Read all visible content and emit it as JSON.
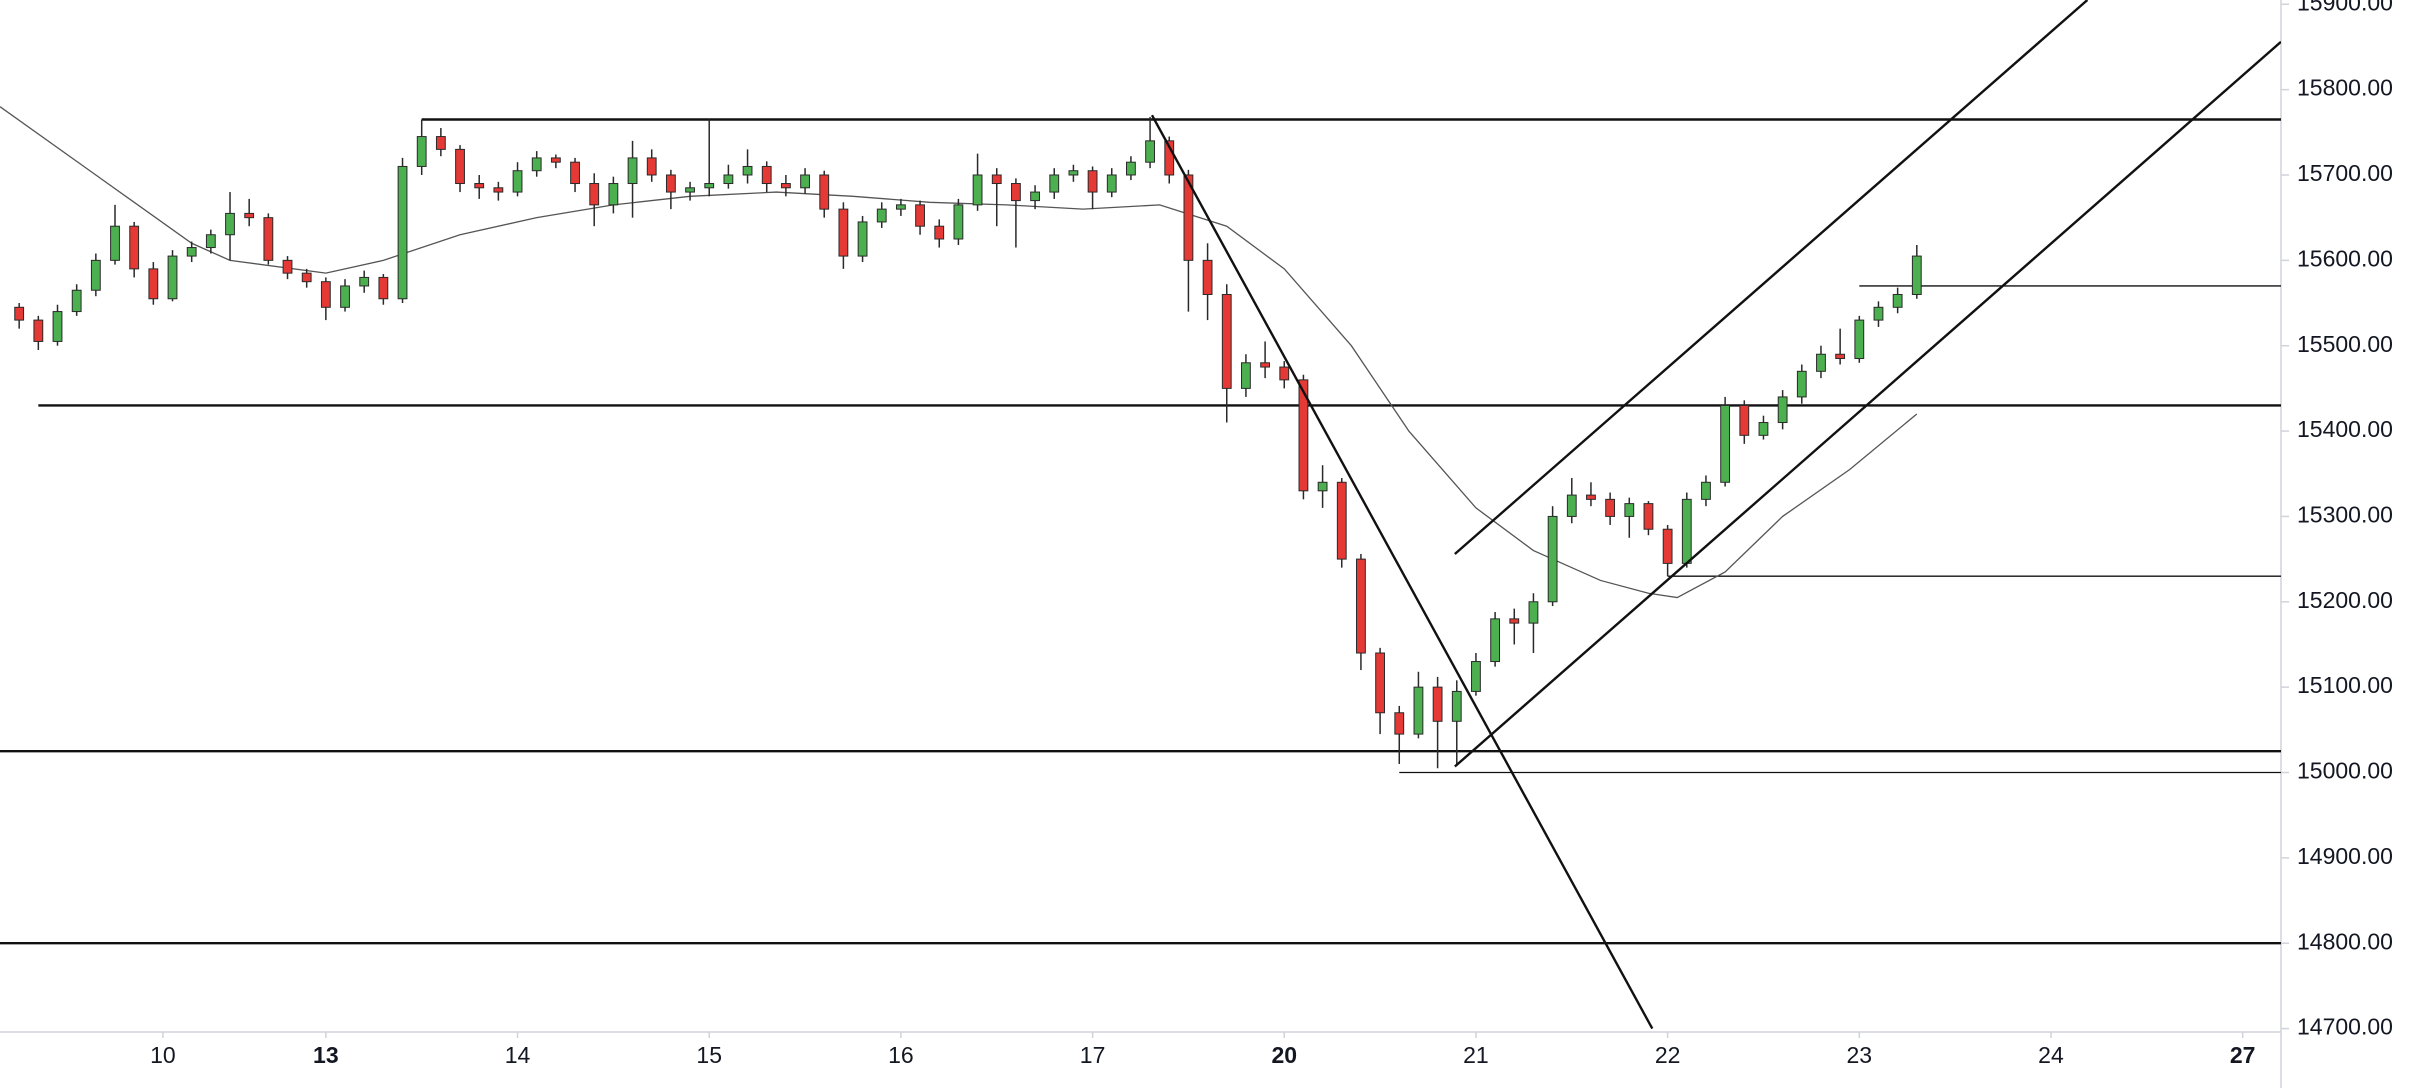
{
  "chart_data": {
    "type": "candlestick",
    "up_color": "#4caf50",
    "down_color": "#e53935",
    "outline_color": "#2a2a2a",
    "xlim": [
      -1,
      118
    ],
    "ylim": [
      14696,
      15905
    ],
    "xticks": [
      {
        "value": 7.5,
        "label": "10"
      },
      {
        "value": 16,
        "label": "13",
        "bold": true
      },
      {
        "value": 26,
        "label": "14"
      },
      {
        "value": 36,
        "label": "15"
      },
      {
        "value": 46,
        "label": "16"
      },
      {
        "value": 56,
        "label": "17"
      },
      {
        "value": 66,
        "label": "20",
        "bold": true
      },
      {
        "value": 76,
        "label": "21"
      },
      {
        "value": 86,
        "label": "22"
      },
      {
        "value": 96,
        "label": "23"
      },
      {
        "value": 106,
        "label": "24"
      },
      {
        "value": 116,
        "label": "27",
        "bold": true
      }
    ],
    "yticks": [
      {
        "value": 14700,
        "label": "14700.00"
      },
      {
        "value": 14800,
        "label": "14800.00"
      },
      {
        "value": 14900,
        "label": "14900.00"
      },
      {
        "value": 15000,
        "label": "15000.00"
      },
      {
        "value": 15100,
        "label": "15100.00"
      },
      {
        "value": 15200,
        "label": "15200.00"
      },
      {
        "value": 15300,
        "label": "15300.00"
      },
      {
        "value": 15400,
        "label": "15400.00"
      },
      {
        "value": 15500,
        "label": "15500.00"
      },
      {
        "value": 15600,
        "label": "15600.00"
      },
      {
        "value": 15700,
        "label": "15700.00"
      },
      {
        "value": 15800,
        "label": "15800.00"
      },
      {
        "value": 15900,
        "label": "15900.00"
      }
    ],
    "candles": [
      [
        15545,
        15550,
        15520,
        15530
      ],
      [
        15530,
        15535,
        15495,
        15505
      ],
      [
        15505,
        15548,
        15500,
        15540
      ],
      [
        15540,
        15572,
        15535,
        15565
      ],
      [
        15565,
        15608,
        15558,
        15600
      ],
      [
        15600,
        15665,
        15595,
        15640
      ],
      [
        15640,
        15645,
        15580,
        15590
      ],
      [
        15590,
        15598,
        15548,
        15555
      ],
      [
        15555,
        15612,
        15552,
        15605
      ],
      [
        15605,
        15622,
        15598,
        15615
      ],
      [
        15615,
        15636,
        15608,
        15630
      ],
      [
        15630,
        15680,
        15600,
        15655
      ],
      [
        15655,
        15672,
        15640,
        15650
      ],
      [
        15650,
        15655,
        15595,
        15600
      ],
      [
        15600,
        15605,
        15578,
        15585
      ],
      [
        15585,
        15590,
        15568,
        15575
      ],
      [
        15575,
        15580,
        15530,
        15545
      ],
      [
        15545,
        15578,
        15540,
        15570
      ],
      [
        15570,
        15588,
        15562,
        15580
      ],
      [
        15580,
        15584,
        15548,
        15555
      ],
      [
        15555,
        15720,
        15550,
        15710
      ],
      [
        15710,
        15765,
        15700,
        15745
      ],
      [
        15745,
        15755,
        15722,
        15730
      ],
      [
        15730,
        15735,
        15680,
        15690
      ],
      [
        15690,
        15700,
        15672,
        15685
      ],
      [
        15685,
        15692,
        15670,
        15680
      ],
      [
        15680,
        15715,
        15675,
        15705
      ],
      [
        15705,
        15728,
        15698,
        15720
      ],
      [
        15720,
        15724,
        15708,
        15715
      ],
      [
        15715,
        15720,
        15680,
        15690
      ],
      [
        15690,
        15702,
        15640,
        15665
      ],
      [
        15665,
        15698,
        15655,
        15690
      ],
      [
        15690,
        15740,
        15650,
        15720
      ],
      [
        15720,
        15730,
        15692,
        15700
      ],
      [
        15700,
        15706,
        15660,
        15680
      ],
      [
        15680,
        15692,
        15670,
        15685
      ],
      [
        15685,
        15765,
        15675,
        15690
      ],
      [
        15690,
        15712,
        15684,
        15700
      ],
      [
        15700,
        15730,
        15690,
        15710
      ],
      [
        15710,
        15716,
        15680,
        15690
      ],
      [
        15690,
        15700,
        15675,
        15685
      ],
      [
        15685,
        15708,
        15678,
        15700
      ],
      [
        15700,
        15705,
        15650,
        15660
      ],
      [
        15660,
        15668,
        15590,
        15605
      ],
      [
        15605,
        15652,
        15598,
        15645
      ],
      [
        15645,
        15668,
        15638,
        15660
      ],
      [
        15660,
        15672,
        15652,
        15665
      ],
      [
        15665,
        15670,
        15630,
        15640
      ],
      [
        15640,
        15648,
        15615,
        15625
      ],
      [
        15625,
        15672,
        15618,
        15665
      ],
      [
        15665,
        15725,
        15658,
        15700
      ],
      [
        15700,
        15708,
        15640,
        15690
      ],
      [
        15690,
        15696,
        15615,
        15670
      ],
      [
        15670,
        15688,
        15660,
        15680
      ],
      [
        15680,
        15708,
        15672,
        15700
      ],
      [
        15700,
        15712,
        15692,
        15705
      ],
      [
        15705,
        15710,
        15660,
        15680
      ],
      [
        15680,
        15708,
        15674,
        15700
      ],
      [
        15700,
        15722,
        15694,
        15715
      ],
      [
        15715,
        15768,
        15708,
        15740
      ],
      [
        15740,
        15745,
        15690,
        15700
      ],
      [
        15700,
        15706,
        15540,
        15600
      ],
      [
        15600,
        15620,
        15530,
        15560
      ],
      [
        15560,
        15572,
        15410,
        15450
      ],
      [
        15450,
        15490,
        15440,
        15480
      ],
      [
        15480,
        15505,
        15462,
        15475
      ],
      [
        15475,
        15482,
        15450,
        15460
      ],
      [
        15460,
        15466,
        15320,
        15330
      ],
      [
        15330,
        15360,
        15310,
        15340
      ],
      [
        15340,
        15345,
        15240,
        15250
      ],
      [
        15250,
        15256,
        15120,
        15140
      ],
      [
        15140,
        15146,
        15045,
        15070
      ],
      [
        15070,
        15078,
        15010,
        15045
      ],
      [
        15045,
        15118,
        15040,
        15100
      ],
      [
        15100,
        15112,
        15005,
        15060
      ],
      [
        15060,
        15108,
        15008,
        15095
      ],
      [
        15095,
        15140,
        15090,
        15130
      ],
      [
        15130,
        15188,
        15124,
        15180
      ],
      [
        15180,
        15192,
        15150,
        15175
      ],
      [
        15175,
        15210,
        15140,
        15200
      ],
      [
        15200,
        15312,
        15195,
        15300
      ],
      [
        15300,
        15345,
        15292,
        15325
      ],
      [
        15325,
        15340,
        15312,
        15320
      ],
      [
        15320,
        15328,
        15290,
        15300
      ],
      [
        15300,
        15322,
        15275,
        15315
      ],
      [
        15315,
        15318,
        15278,
        15285
      ],
      [
        15285,
        15290,
        15230,
        15245
      ],
      [
        15245,
        15328,
        15240,
        15320
      ],
      [
        15320,
        15348,
        15312,
        15340
      ],
      [
        15340,
        15440,
        15335,
        15430
      ],
      [
        15430,
        15436,
        15385,
        15395
      ],
      [
        15395,
        15418,
        15390,
        15410
      ],
      [
        15410,
        15448,
        15402,
        15440
      ],
      [
        15440,
        15478,
        15432,
        15470
      ],
      [
        15470,
        15500,
        15462,
        15490
      ],
      [
        15490,
        15520,
        15478,
        15485
      ],
      [
        15485,
        15535,
        15480,
        15530
      ],
      [
        15530,
        15552,
        15522,
        15545
      ],
      [
        15545,
        15568,
        15538,
        15560
      ],
      [
        15560,
        15618,
        15555,
        15605
      ]
    ],
    "moving_average": {
      "color": "#555555",
      "x": [
        -1,
        4,
        9,
        11,
        16,
        19,
        23,
        27,
        31,
        35,
        39.5,
        43.5,
        47.5,
        51.5,
        55.5,
        59.5,
        63,
        66,
        69.5,
        72.5,
        76,
        79,
        82.5,
        85,
        86.5,
        89,
        92,
        95.5,
        99
      ],
      "values": [
        15780,
        15700,
        15620,
        15600,
        15585,
        15600,
        15630,
        15650,
        15665,
        15675,
        15680,
        15675,
        15668,
        15665,
        15660,
        15665,
        15640,
        15590,
        15500,
        15400,
        15310,
        15260,
        15225,
        15210,
        15205,
        15235,
        15300,
        15355,
        15420
      ]
    },
    "levels": [
      {
        "price": 15765,
        "from": 21,
        "weight": 2
      },
      {
        "price": 15430,
        "from": 1,
        "weight": 2
      },
      {
        "price": 15025,
        "weight": 2
      },
      {
        "price": 14800,
        "weight": 2
      },
      {
        "price": 15000,
        "from": 72,
        "weight": 1
      },
      {
        "price": 15230,
        "from": 86,
        "weight": 1
      },
      {
        "price": 15570,
        "from": 96,
        "weight": 1
      }
    ],
    "trendlines": [
      {
        "x": [
          59.1,
          85.2
        ],
        "y": [
          15770,
          14700
        ]
      },
      {
        "x": [
          74.9,
          107.9
        ],
        "y": [
          15256,
          15905
        ]
      },
      {
        "x": [
          74.9,
          118
        ],
        "y": [
          15007,
          15856
        ]
      }
    ]
  }
}
